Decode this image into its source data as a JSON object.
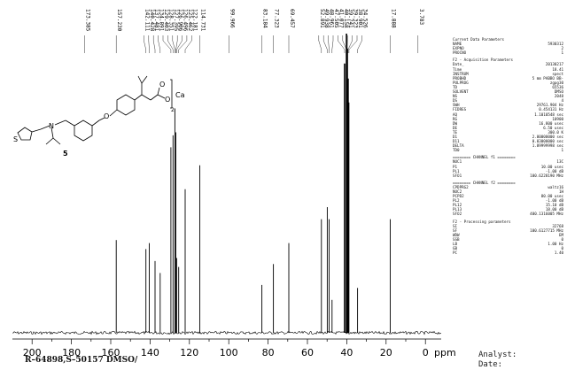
{
  "chart_data": {
    "type": "line",
    "title": "",
    "xlabel": "ppm",
    "ylabel": "",
    "xlim": [
      210,
      -8
    ],
    "reversed_x": true,
    "xticks": [
      200,
      180,
      160,
      140,
      120,
      100,
      80,
      60,
      40,
      20,
      0
    ],
    "peaks": [
      {
        "ppm": 173.385,
        "height": 0.0
      },
      {
        "ppm": 157.23,
        "height": 0.31
      },
      {
        "ppm": 142.111,
        "height": 0.28
      },
      {
        "ppm": 140.428,
        "height": 0.3
      },
      {
        "ppm": 137.481,
        "height": 0.24
      },
      {
        "ppm": 134.891,
        "height": 0.2
      },
      {
        "ppm": 129.403,
        "height": 0.62
      },
      {
        "ppm": 128.351,
        "height": 0.66
      },
      {
        "ppm": 127.395,
        "height": 0.75
      },
      {
        "ppm": 126.906,
        "height": 0.67
      },
      {
        "ppm": 126.496,
        "height": 0.25
      },
      {
        "ppm": 125.462,
        "height": 0.22
      },
      {
        "ppm": 122.181,
        "height": 0.48
      },
      {
        "ppm": 114.731,
        "height": 0.56
      },
      {
        "ppm": 99.966,
        "height": 0.0
      },
      {
        "ppm": 83.184,
        "height": 0.16
      },
      {
        "ppm": 77.323,
        "height": 0.23
      },
      {
        "ppm": 69.457,
        "height": 0.3
      },
      {
        "ppm": 52.891,
        "height": 0.38
      },
      {
        "ppm": 49.938,
        "height": 0.42
      },
      {
        "ppm": 48.961,
        "height": 0.38
      },
      {
        "ppm": 47.505,
        "height": 0.11
      },
      {
        "ppm": 41.077,
        "height": 0.9
      },
      {
        "ppm": 40.158,
        "height": 1.0
      },
      {
        "ppm": 39.741,
        "height": 0.95
      },
      {
        "ppm": 39.323,
        "height": 0.85
      },
      {
        "ppm": 38.901,
        "height": 0.77
      },
      {
        "ppm": 34.526,
        "height": 0.15
      },
      {
        "ppm": 17.888,
        "height": 0.38
      },
      {
        "ppm": 3.783,
        "height": 0.0
      }
    ],
    "peak_labels": [
      "173.385",
      "157.230",
      "142.111",
      "140.428",
      "137.481",
      "134.891",
      "129.403",
      "128.351",
      "127.395",
      "126.906",
      "126.496",
      "125.462",
      "122.181",
      "114.731",
      "99.966",
      "83.184",
      "77.323",
      "69.457",
      "52.891",
      "49.938",
      "48.961",
      "47.505",
      "41.077",
      "40.158",
      "39.741",
      "39.323",
      "38.901",
      "34.526",
      "17.888",
      "3.783"
    ],
    "grid": false,
    "legend": "none"
  },
  "structure": {
    "compound_number": "5",
    "atom_labels": [
      "S",
      "N",
      "O",
      "O",
      "O",
      "Ca"
    ],
    "subscript": "2"
  },
  "acquisition_panel": {
    "section_current": "Current Data Parameters",
    "current": [
      [
        "NAME",
        "5930312"
      ],
      [
        "EXPNO",
        "2"
      ],
      [
        "PROCNO",
        "1"
      ]
    ],
    "section_acq": "F2 - Acquisition Parameters",
    "acquisition": [
      [
        "Date_",
        "20130217"
      ],
      [
        "Time",
        "18.41"
      ],
      [
        "INSTRUM",
        "spect"
      ],
      [
        "PROBHD",
        "5 mm PABBO BB-"
      ],
      [
        "PULPROG",
        "zgpg30"
      ],
      [
        "TD",
        "65536"
      ],
      [
        "SOLVENT",
        "DMSO"
      ],
      [
        "NS",
        "2048"
      ],
      [
        "DS",
        "4"
      ],
      [
        "SWH",
        "29761.904 Hz"
      ],
      [
        "FIDRES",
        "0.454131 Hz"
      ],
      [
        "AQ",
        "1.1010548 sec"
      ],
      [
        "RG",
        "10900"
      ],
      [
        "DW",
        "16.800 usec"
      ],
      [
        "DE",
        "6.50 usec"
      ],
      [
        "TE",
        "300.0 K"
      ],
      [
        "D1",
        "2.00000000 sec"
      ],
      [
        "D11",
        "0.03000000 sec"
      ],
      [
        "DELTA",
        "1.89999998 sec"
      ],
      [
        "TD0",
        "1"
      ]
    ],
    "section_ch1": "======== CHANNEL f1 ========",
    "channel1": [
      [
        "NUC1",
        "13C"
      ],
      [
        "P1",
        "10.00 usec"
      ],
      [
        "PL1",
        "-1.00 dB"
      ],
      [
        "SFO1",
        "100.6228190 MHz"
      ]
    ],
    "section_ch2": "======== CHANNEL f2 ========",
    "channel2": [
      [
        "CPDPRG2",
        "waltz16"
      ],
      [
        "NUC2",
        "1H"
      ],
      [
        "PCPD2",
        "80.00 usec"
      ],
      [
        "PL2",
        "-1.00 dB"
      ],
      [
        "PL12",
        "15.10 dB"
      ],
      [
        "PL13",
        "18.00 dB"
      ],
      [
        "SFO2",
        "400.1316005 MHz"
      ]
    ],
    "section_proc": "F2 - Processing parameters",
    "processing": [
      [
        "SI",
        "32768"
      ],
      [
        "SF",
        "100.6127715 MHz"
      ],
      [
        "WDW",
        "EM"
      ],
      [
        "SSB",
        "0"
      ],
      [
        "LB",
        "1.00 Hz"
      ],
      [
        "GB",
        "0"
      ],
      [
        "PC",
        "1.40"
      ]
    ]
  },
  "footer": {
    "sample_line1": "R–64898,S–50157   DMSO/",
    "analyst_label": "Analyst:",
    "date_label": "Date:"
  }
}
